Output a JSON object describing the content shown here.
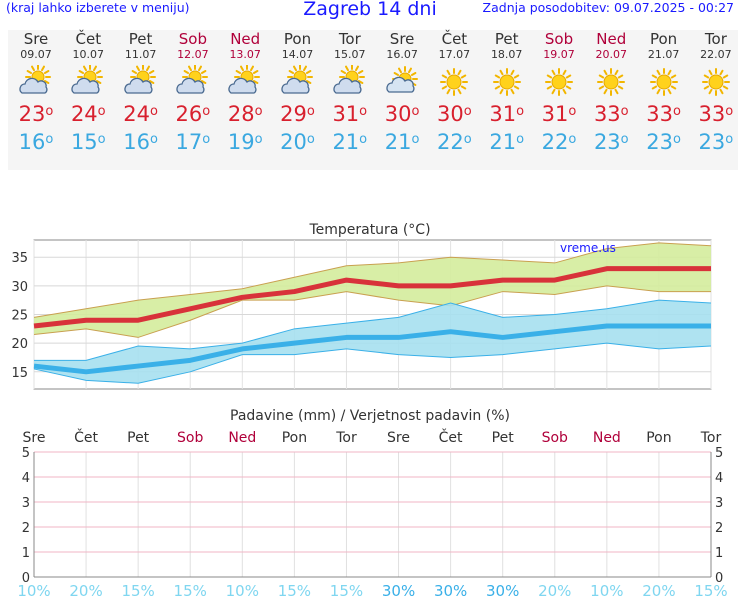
{
  "header": {
    "hint": "(kraj lahko izberete v meniju)",
    "title": "Zagreb 14 dni",
    "updated": "Zadnja posodobitev: 09.07.2025 - 00:27"
  },
  "colors": {
    "max_line": "#d8323a",
    "max_band": "#d4ec9c",
    "min_line": "#3ab0e8",
    "min_band": "#a6e0f0",
    "weekend": "#b0003a",
    "link": "#1a1aff",
    "prob_text": "#7fd6f0"
  },
  "days": [
    {
      "name": "Sre",
      "date": "09.07",
      "weekend": false,
      "icon": "partly-cloudy-sun-icon",
      "tmax": "23",
      "tmin": "16"
    },
    {
      "name": "Čet",
      "date": "10.07",
      "weekend": false,
      "icon": "partly-cloudy-sun-icon",
      "tmax": "24",
      "tmin": "15"
    },
    {
      "name": "Pet",
      "date": "11.07",
      "weekend": false,
      "icon": "partly-cloudy-sun-icon",
      "tmax": "24",
      "tmin": "16"
    },
    {
      "name": "Sob",
      "date": "12.07",
      "weekend": true,
      "icon": "partly-cloudy-sun-icon",
      "tmax": "26",
      "tmin": "17"
    },
    {
      "name": "Ned",
      "date": "13.07",
      "weekend": true,
      "icon": "partly-cloudy-sun-icon",
      "tmax": "28",
      "tmin": "19"
    },
    {
      "name": "Pon",
      "date": "14.07",
      "weekend": false,
      "icon": "partly-cloudy-sun-icon",
      "tmax": "29",
      "tmin": "20"
    },
    {
      "name": "Tor",
      "date": "15.07",
      "weekend": false,
      "icon": "partly-cloudy-sun-icon",
      "tmax": "31",
      "tmin": "21"
    },
    {
      "name": "Sre",
      "date": "16.07",
      "weekend": false,
      "icon": "mostly-sunny-icon",
      "tmax": "30",
      "tmin": "21"
    },
    {
      "name": "Čet",
      "date": "17.07",
      "weekend": false,
      "icon": "sun-icon",
      "tmax": "30",
      "tmin": "22"
    },
    {
      "name": "Pet",
      "date": "18.07",
      "weekend": false,
      "icon": "sun-icon",
      "tmax": "31",
      "tmin": "21"
    },
    {
      "name": "Sob",
      "date": "19.07",
      "weekend": true,
      "icon": "sun-icon",
      "tmax": "31",
      "tmin": "22"
    },
    {
      "name": "Ned",
      "date": "20.07",
      "weekend": true,
      "icon": "sun-icon",
      "tmax": "33",
      "tmin": "23"
    },
    {
      "name": "Pon",
      "date": "21.07",
      "weekend": false,
      "icon": "sun-icon",
      "tmax": "33",
      "tmin": "23"
    },
    {
      "name": "Tor",
      "date": "22.07",
      "weekend": false,
      "icon": "sun-icon",
      "tmax": "33",
      "tmin": "23"
    }
  ],
  "chart_data": [
    {
      "type": "line",
      "title": "Temperatura (°C)",
      "watermark": "vreme.us",
      "x": [
        "09.07",
        "10.07",
        "11.07",
        "12.07",
        "13.07",
        "14.07",
        "15.07",
        "16.07",
        "17.07",
        "18.07",
        "19.07",
        "20.07",
        "21.07",
        "22.07"
      ],
      "ylim": [
        12,
        38
      ],
      "yticks": [
        15,
        20,
        25,
        30,
        35
      ],
      "grid": true,
      "series": [
        {
          "values": [
            23,
            24,
            24,
            26,
            28,
            29,
            31,
            30,
            30,
            31,
            31,
            33,
            33,
            33
          ],
          "band_high": [
            24.5,
            26,
            27.5,
            28.5,
            29.5,
            31.5,
            33.5,
            34,
            35,
            34.5,
            34,
            36.5,
            37.5,
            37
          ],
          "band_low": [
            21.5,
            22.5,
            21,
            24,
            27.5,
            27.5,
            29,
            27.5,
            26.5,
            29,
            28.5,
            30,
            29,
            29
          ]
        },
        {
          "values": [
            16,
            15,
            16,
            17,
            19,
            20,
            21,
            21,
            22,
            21,
            22,
            23,
            23,
            23
          ],
          "band_high": [
            17,
            17,
            19.5,
            19,
            20,
            22.5,
            23.5,
            24.5,
            27,
            24.5,
            25,
            26,
            27.5,
            27
          ],
          "band_low": [
            15.5,
            13.5,
            13,
            15,
            18,
            18,
            19,
            18,
            17.5,
            18,
            19,
            20,
            19,
            19.5
          ]
        }
      ]
    },
    {
      "type": "bar",
      "title": "Padavine (mm) / Verjetnost padavin (%)",
      "categories": [
        "Sre",
        "Čet",
        "Pet",
        "Sob",
        "Ned",
        "Pon",
        "Tor",
        "Sre",
        "Čet",
        "Pet",
        "Sob",
        "Ned",
        "Pon",
        "Tor"
      ],
      "weekend": [
        false,
        false,
        false,
        true,
        true,
        false,
        false,
        false,
        false,
        false,
        true,
        true,
        false,
        false
      ],
      "values": [
        0,
        0,
        0,
        0,
        0,
        0,
        0,
        0,
        0,
        0,
        0,
        0,
        0,
        0
      ],
      "probability": [
        "10%",
        "20%",
        "15%",
        "15%",
        "10%",
        "15%",
        "15%",
        "30%",
        "30%",
        "30%",
        "20%",
        "10%",
        "20%",
        "15%"
      ],
      "prob_strong": [
        false,
        false,
        false,
        false,
        false,
        false,
        false,
        true,
        true,
        true,
        false,
        false,
        false,
        false
      ],
      "ylim": [
        0,
        5
      ],
      "yticks": [
        "0",
        "1",
        "2",
        "3",
        "4",
        "5"
      ],
      "grid": true
    }
  ]
}
